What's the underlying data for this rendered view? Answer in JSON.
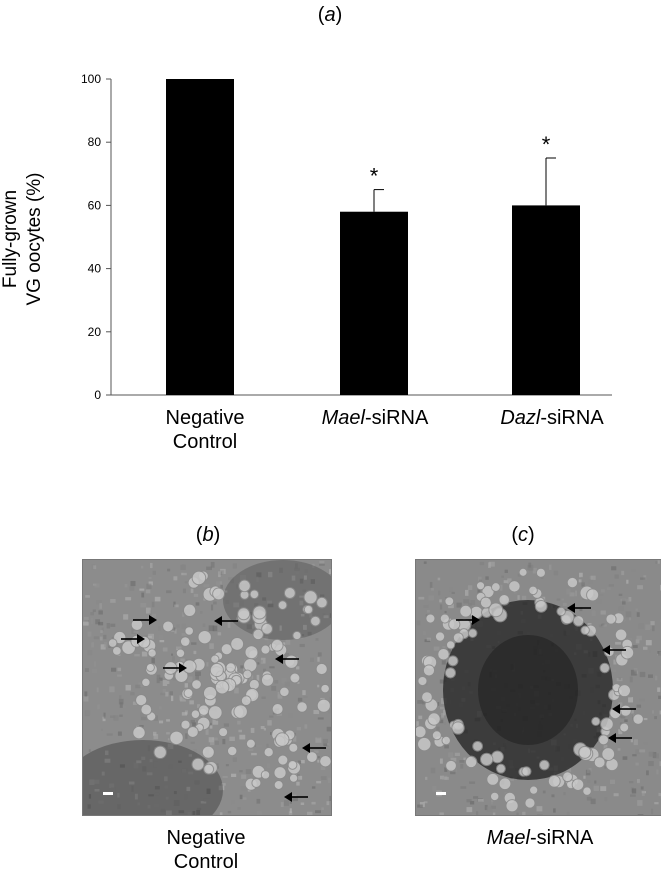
{
  "figure": {
    "panel_a_label": "a",
    "panel_b_label": "b",
    "panel_c_label": "c",
    "caption_b": [
      "Negative",
      "Control"
    ],
    "caption_c_italic": "Mael",
    "caption_c_rest": "-siRNA"
  },
  "chart_data": {
    "type": "bar",
    "ylabel_lines": [
      "Fully-grown",
      "VG oocytes (%)"
    ],
    "xlabel": "",
    "ylim": [
      0,
      100
    ],
    "yticks": [
      0,
      20,
      40,
      60,
      80,
      100
    ],
    "grid": false,
    "categories": [
      {
        "parts": [
          [
            "",
            "Negative"
          ],
          [
            "",
            "Control"
          ]
        ],
        "label": "Negative Control"
      },
      {
        "parts": [
          [
            "Mael",
            "-siRNA"
          ]
        ],
        "label": "Mael-siRNA"
      },
      {
        "parts": [
          [
            "Dazl",
            "-siRNA"
          ]
        ],
        "label": "Dazl-siRNA"
      }
    ],
    "values": [
      100,
      58,
      60
    ],
    "error_upper": [
      0,
      7,
      15
    ],
    "significance": [
      "",
      "*",
      "*"
    ],
    "bar_color": "#000000"
  }
}
